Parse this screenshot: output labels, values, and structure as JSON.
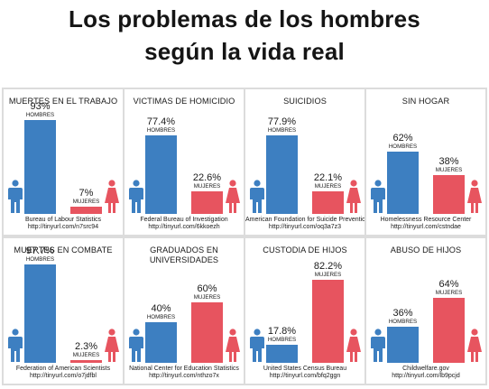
{
  "title": {
    "line1": "Los problemas de los hombres",
    "line2": "según la vida real"
  },
  "colors": {
    "men": "#3d7fc1",
    "women": "#e7545f",
    "grid": "#dcdcdc"
  },
  "chart_data": [
    {
      "type": "bar",
      "title": "MUERTES EN EL TRABAJO",
      "categories": [
        "HOMBRES",
        "MUJERES"
      ],
      "values": [
        93,
        7
      ],
      "labels": [
        "93%",
        "7%"
      ],
      "source": "Bureau of Labour Statistics",
      "url": "http://tinyurl.com/n7src94"
    },
    {
      "type": "bar",
      "title": "VICTIMAS DE HOMICIDIO",
      "categories": [
        "HOMBRES",
        "MUJERES"
      ],
      "values": [
        77.4,
        22.6
      ],
      "labels": [
        "77.4%",
        "22.6%"
      ],
      "source": "Federal Bureau of Investigation",
      "url": "http://tinyurl.com/6kkoezh"
    },
    {
      "type": "bar",
      "title": "SUICIDIOS",
      "categories": [
        "HOMBRES",
        "MUJERES"
      ],
      "values": [
        77.9,
        22.1
      ],
      "labels": [
        "77.9%",
        "22.1%"
      ],
      "source": "American Foundation for Suicide Prevention",
      "url": "http://tinyurl.com/oq3a7z3"
    },
    {
      "type": "bar",
      "title": "SIN HOGAR",
      "categories": [
        "HOMBRES",
        "MUJERES"
      ],
      "values": [
        62,
        38
      ],
      "labels": [
        "62%",
        "38%"
      ],
      "source": "Homelessness Resource Center",
      "url": "http://tinyurl.com/cstndae"
    },
    {
      "type": "bar",
      "title": "MUERTES EN COMBATE",
      "categories": [
        "HOMBRES",
        "MUJERES"
      ],
      "values": [
        97.7,
        2.3
      ],
      "labels": [
        "97.7%",
        "2.3%"
      ],
      "source": "Federation of American Scientists",
      "url": "http://tinyurl.com/o7jdfbl"
    },
    {
      "type": "bar",
      "title": "GRADUADOS EN UNIVERSIDADES",
      "categories": [
        "HOMBRES",
        "MUJERES"
      ],
      "values": [
        40,
        60
      ],
      "labels": [
        "40%",
        "60%"
      ],
      "source": "National Center for Education Statistics",
      "url": "http://tinyurl.com/nthzo7x"
    },
    {
      "type": "bar",
      "title": "CUSTODIA DE HIJOS",
      "categories": [
        "HOMBRES",
        "MUJERES"
      ],
      "values": [
        17.8,
        82.2
      ],
      "labels": [
        "17.8%",
        "82.2%"
      ],
      "source": "United States Census Bureau",
      "url": "http://tinyurl.com/bfq2ggn"
    },
    {
      "type": "bar",
      "title": "ABUSO DE HIJOS",
      "categories": [
        "HOMBRES",
        "MUJERES"
      ],
      "values": [
        36,
        64
      ],
      "labels": [
        "36%",
        "64%"
      ],
      "source": "Childwelfare.gov",
      "url": "http://tinyurl.com/lb9pcjd"
    }
  ]
}
